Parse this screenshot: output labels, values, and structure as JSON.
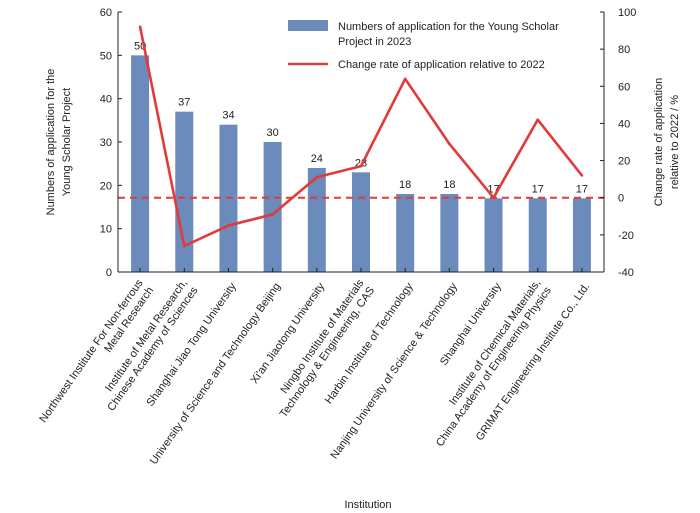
{
  "chart_data": {
    "type": "bar",
    "xlabel": "Institution",
    "ylabel_lines": [
      "Numbers of application for the",
      "Young Scholar Project"
    ],
    "y2label_lines": [
      "Change rate of application",
      "relative to 2022 / %"
    ],
    "ylim": [
      0,
      60
    ],
    "y_ticks": [
      "0",
      "10",
      "20",
      "30",
      "40",
      "50",
      "60"
    ],
    "y2lim": [
      -40,
      100
    ],
    "y2_ticks": [
      "-40",
      "-20",
      "0",
      "20",
      "40",
      "60",
      "80",
      "100"
    ],
    "categories": [
      [
        "Northwest Institute For Non-ferrous",
        "Metal Research"
      ],
      [
        "Institute of Metal Research,",
        "Chinese Academy of Sciences"
      ],
      [
        "Shanghai Jiao Tong University"
      ],
      [
        "University of Science and Technology Beijing"
      ],
      [
        "Xi'an Jiaotong University"
      ],
      [
        "Ningbo Institute of Materials",
        "Technology & Engineering, CAS"
      ],
      [
        "Harbin Institute of Technology"
      ],
      [
        "Nanjing University of Science & Technology"
      ],
      [
        "Shanghai University"
      ],
      [
        "Institute of Chemical Materials,",
        "China Academy of Engineering Physics"
      ],
      [
        "GRIMAT Engineering Institute Co., Ltd."
      ]
    ],
    "series": [
      {
        "name": "Numbers of application for the Young Scholar Project in 2023",
        "name_lines": [
          "Numbers of application for the Young Scholar",
          "Project in 2023"
        ],
        "type": "bar",
        "axis": "left",
        "color": "#6a8bbb",
        "values": [
          50,
          37,
          34,
          30,
          24,
          23,
          18,
          18,
          17,
          17,
          17
        ],
        "labels": [
          "50",
          "37",
          "34",
          "30",
          "24",
          "23",
          "18",
          "18",
          "17",
          "17",
          "17"
        ]
      },
      {
        "name": "Change rate of application relative to 2022",
        "type": "line",
        "axis": "right",
        "color": "#e23a3a",
        "values": [
          92,
          -26,
          -15,
          -9,
          11,
          17,
          64,
          29,
          0,
          42,
          12
        ]
      }
    ],
    "reference_line": {
      "axis": "right",
      "value": 0,
      "style": "dashed",
      "color": "#e23a3a"
    },
    "legend_position": "top-right",
    "grid": false
  }
}
